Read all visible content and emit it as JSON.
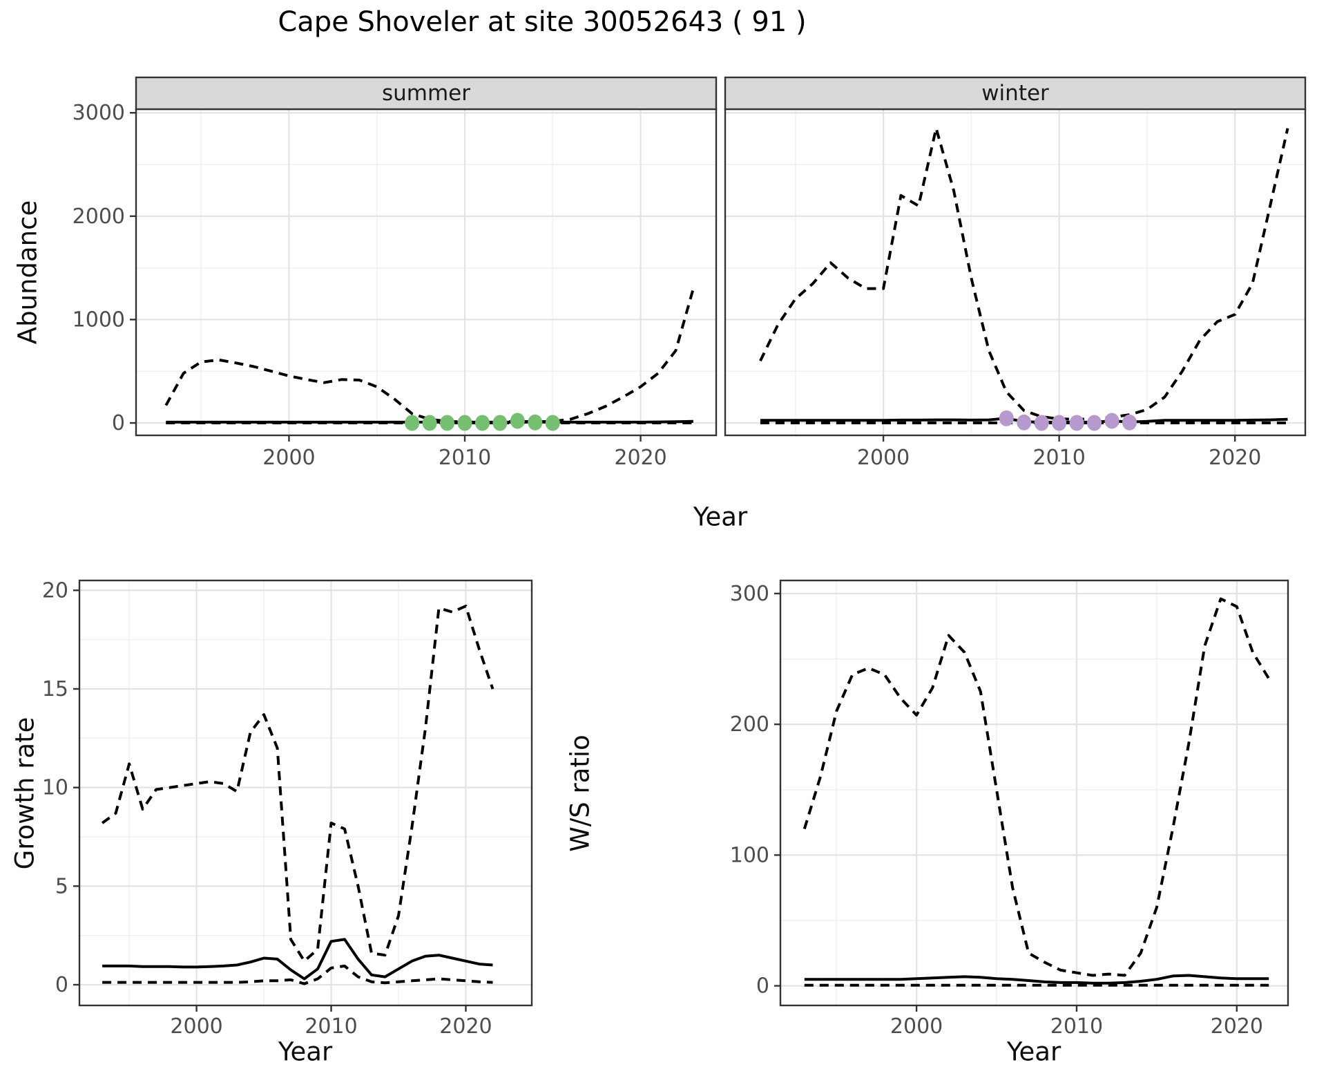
{
  "title": "Cape Shoveler at site 30052643 ( 91 )",
  "colors": {
    "summer_dot": "#74BF70",
    "winter_dot": "#B69ACE",
    "strip_bg": "#d9d9d9",
    "panel_border": "#333333",
    "grid_major": "#e3e3e3",
    "grid_minor": "#f1f1f1",
    "axis_text": "#4d4d4d",
    "tick_mark": "#333333",
    "line": "#000000",
    "panel_bg": "#ffffff"
  },
  "chart_data": [
    {
      "id": "abundance-summer",
      "type": "line",
      "facet_label": "summer",
      "ylabel": "Abundance",
      "xlabel": "Year",
      "xlim": [
        1991.3,
        2024.3
      ],
      "ylim": [
        -120,
        3035
      ],
      "xticks": [
        2000,
        2010,
        2020
      ],
      "xminor": [
        1995,
        2005,
        2015
      ],
      "yticks": [
        0,
        1000,
        2000,
        3000
      ],
      "yminor": [
        500,
        1500,
        2500
      ],
      "x": [
        1993,
        1994,
        1995,
        1996,
        1997,
        1998,
        1999,
        2000,
        2001,
        2002,
        2003,
        2004,
        2005,
        2006,
        2007,
        2008,
        2009,
        2010,
        2011,
        2012,
        2013,
        2014,
        2015,
        2016,
        2017,
        2018,
        2019,
        2020,
        2021,
        2022,
        2023
      ],
      "series": [
        {
          "name": "upper-ci",
          "style": "dashed",
          "values": [
            170,
            480,
            590,
            610,
            580,
            545,
            500,
            455,
            420,
            390,
            420,
            415,
            350,
            230,
            90,
            35,
            15,
            10,
            10,
            12,
            15,
            12,
            15,
            35,
            90,
            160,
            250,
            350,
            480,
            700,
            1300
          ]
        },
        {
          "name": "median",
          "style": "solid",
          "values": [
            8,
            8,
            8,
            8,
            8,
            8,
            8,
            8,
            8,
            8,
            8,
            8,
            8,
            8,
            8,
            8,
            8,
            8,
            8,
            8,
            8,
            8,
            8,
            8,
            8,
            8,
            8,
            8,
            10,
            12,
            15
          ]
        },
        {
          "name": "lower-ci",
          "style": "dashed",
          "values": [
            0,
            0,
            0,
            0,
            0,
            0,
            0,
            0,
            0,
            0,
            0,
            0,
            0,
            0,
            0,
            0,
            0,
            0,
            0,
            0,
            0,
            0,
            0,
            0,
            0,
            0,
            0,
            0,
            0,
            0,
            0
          ]
        }
      ],
      "points": {
        "name": "flagged-year-point-summer",
        "color_key": "summer_dot",
        "x": [
          2007,
          2008,
          2009,
          2010,
          2011,
          2012,
          2013,
          2014,
          2015
        ],
        "y": [
          0,
          0,
          0,
          0,
          0,
          0,
          20,
          5,
          0
        ]
      }
    },
    {
      "id": "abundance-winter",
      "type": "line",
      "facet_label": "winter",
      "ylabel": "Abundance",
      "xlabel": "Year",
      "xlim": [
        1991.0,
        2024.0
      ],
      "ylim": [
        -120,
        3035
      ],
      "xticks": [
        2000,
        2010,
        2020
      ],
      "xminor": [
        1995,
        2005,
        2015
      ],
      "yticks": [
        0,
        1000,
        2000,
        3000
      ],
      "yminor": [
        500,
        1500,
        2500
      ],
      "x": [
        1993,
        1994,
        1995,
        1996,
        1997,
        1998,
        1999,
        2000,
        2001,
        2002,
        2003,
        2004,
        2005,
        2006,
        2007,
        2008,
        2009,
        2010,
        2011,
        2012,
        2013,
        2014,
        2015,
        2016,
        2017,
        2018,
        2019,
        2020,
        2021,
        2022,
        2023
      ],
      "series": [
        {
          "name": "upper-ci",
          "style": "dashed",
          "values": [
            600,
            950,
            1200,
            1350,
            1550,
            1400,
            1300,
            1300,
            2200,
            2100,
            2850,
            2250,
            1400,
            700,
            300,
            120,
            60,
            40,
            35,
            40,
            55,
            80,
            130,
            250,
            500,
            800,
            980,
            1050,
            1350,
            2100,
            2850
          ]
        },
        {
          "name": "median",
          "style": "solid",
          "values": [
            25,
            25,
            25,
            25,
            25,
            25,
            25,
            25,
            28,
            28,
            30,
            30,
            28,
            30,
            45,
            12,
            8,
            8,
            8,
            8,
            20,
            10,
            15,
            25,
            25,
            25,
            25,
            25,
            28,
            30,
            35
          ]
        },
        {
          "name": "lower-ci",
          "style": "dashed",
          "values": [
            0,
            0,
            0,
            0,
            0,
            0,
            0,
            0,
            0,
            0,
            0,
            0,
            0,
            0,
            0,
            0,
            0,
            0,
            0,
            0,
            0,
            0,
            0,
            0,
            0,
            0,
            0,
            0,
            0,
            0,
            0
          ]
        }
      ],
      "points": {
        "name": "flagged-year-point-winter",
        "color_key": "winter_dot",
        "x": [
          2007,
          2008,
          2009,
          2010,
          2011,
          2012,
          2013,
          2014
        ],
        "y": [
          45,
          5,
          0,
          0,
          0,
          0,
          20,
          5
        ]
      }
    },
    {
      "id": "growth-rate",
      "type": "line",
      "facet_label": "",
      "ylabel": "Growth rate",
      "xlabel": "Year",
      "xlim": [
        1991.3,
        2024.9
      ],
      "ylim": [
        -1.05,
        20.5
      ],
      "xticks": [
        2000,
        2010,
        2020
      ],
      "xminor": [
        1995,
        2005,
        2015
      ],
      "yticks": [
        0,
        5,
        10,
        15,
        20
      ],
      "yminor": [
        2.5,
        7.5,
        12.5,
        17.5
      ],
      "x": [
        1993,
        1994,
        1995,
        1996,
        1997,
        1998,
        1999,
        2000,
        2001,
        2002,
        2003,
        2004,
        2005,
        2006,
        2007,
        2008,
        2009,
        2010,
        2011,
        2012,
        2013,
        2014,
        2015,
        2016,
        2017,
        2018,
        2019,
        2020,
        2021,
        2022
      ],
      "series": [
        {
          "name": "upper-ci",
          "style": "dashed",
          "values": [
            8.2,
            8.7,
            11.2,
            8.9,
            9.9,
            10.0,
            10.1,
            10.2,
            10.3,
            10.2,
            9.8,
            12.8,
            13.7,
            12.0,
            2.3,
            1.2,
            1.8,
            8.2,
            7.9,
            5.0,
            1.6,
            1.5,
            3.5,
            8.0,
            13.0,
            19.1,
            18.9,
            19.2,
            17.0,
            15.0
          ]
        },
        {
          "name": "median",
          "style": "solid",
          "values": [
            0.95,
            0.95,
            0.95,
            0.92,
            0.92,
            0.92,
            0.9,
            0.9,
            0.92,
            0.95,
            1.0,
            1.15,
            1.35,
            1.3,
            0.75,
            0.3,
            0.8,
            2.2,
            2.3,
            1.3,
            0.5,
            0.4,
            0.8,
            1.2,
            1.45,
            1.5,
            1.35,
            1.2,
            1.05,
            1.0
          ]
        },
        {
          "name": "lower-ci",
          "style": "dashed",
          "values": [
            0.12,
            0.12,
            0.12,
            0.12,
            0.12,
            0.12,
            0.12,
            0.12,
            0.12,
            0.12,
            0.12,
            0.15,
            0.2,
            0.2,
            0.25,
            0.05,
            0.3,
            0.85,
            0.95,
            0.4,
            0.15,
            0.1,
            0.15,
            0.2,
            0.25,
            0.3,
            0.25,
            0.2,
            0.15,
            0.12
          ]
        }
      ]
    },
    {
      "id": "ws-ratio",
      "type": "line",
      "facet_label": "",
      "ylabel": "W/S ratio",
      "xlabel": "Year",
      "xlim": [
        1991.5,
        2023.2
      ],
      "ylim": [
        -15,
        310
      ],
      "xticks": [
        2000,
        2010,
        2020
      ],
      "xminor": [
        1995,
        2005,
        2015
      ],
      "yticks": [
        0,
        100,
        200,
        300
      ],
      "yminor": [
        50,
        150,
        250
      ],
      "x": [
        1993,
        1994,
        1995,
        1996,
        1997,
        1998,
        1999,
        2000,
        2001,
        2002,
        2003,
        2004,
        2005,
        2006,
        2007,
        2008,
        2009,
        2010,
        2011,
        2012,
        2013,
        2014,
        2015,
        2016,
        2017,
        2018,
        2019,
        2020,
        2021,
        2022
      ],
      "series": [
        {
          "name": "upper-ci",
          "style": "dashed",
          "values": [
            120,
            160,
            210,
            238,
            243,
            238,
            220,
            207,
            228,
            268,
            255,
            225,
            150,
            75,
            25,
            18,
            12,
            10,
            8,
            9,
            8,
            25,
            60,
            120,
            185,
            260,
            296,
            290,
            255,
            235
          ]
        },
        {
          "name": "median",
          "style": "solid",
          "values": [
            5,
            5,
            5,
            5,
            5,
            5,
            5,
            5.5,
            6,
            6.5,
            7,
            6.5,
            5.5,
            5,
            4,
            3,
            2.5,
            2.5,
            2,
            2,
            2.5,
            3.5,
            5,
            7.5,
            8,
            7,
            6,
            5.5,
            5.5,
            5.5
          ]
        },
        {
          "name": "lower-ci",
          "style": "dashed",
          "values": [
            0.5,
            0.5,
            0.5,
            0.5,
            0.5,
            0.5,
            0.5,
            0.5,
            0.5,
            0.5,
            0.5,
            0.5,
            0.5,
            0.5,
            0.5,
            0.5,
            0.5,
            0.5,
            0.5,
            0.5,
            0.5,
            0.5,
            0.5,
            0.5,
            0.5,
            0.5,
            0.5,
            0.5,
            0.5,
            0.5
          ]
        }
      ]
    }
  ]
}
